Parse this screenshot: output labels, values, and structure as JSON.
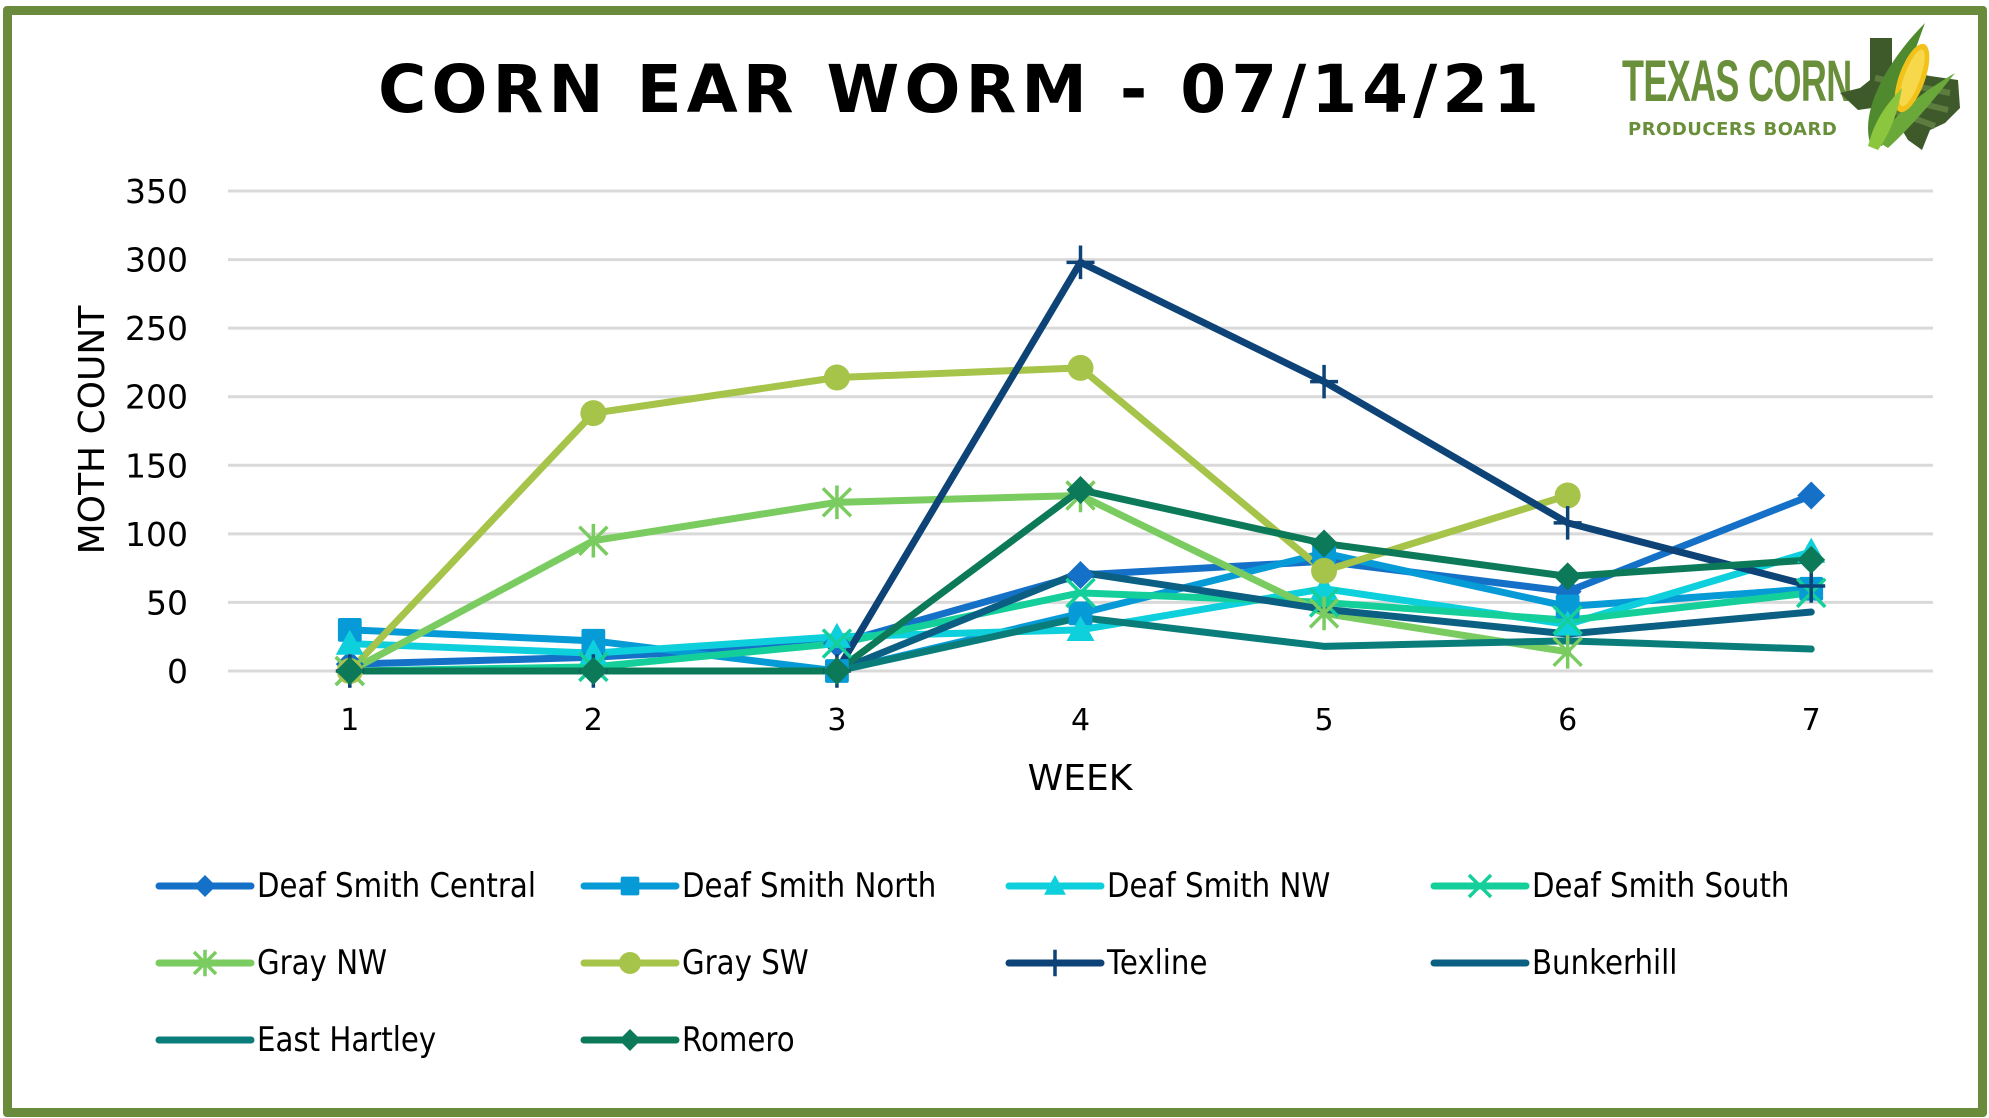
{
  "logo": {
    "main_text": "TEXAS CORN",
    "sub_text": "PRODUCERS BOARD"
  },
  "colors": {
    "frame": "#6a8a3c",
    "grid": "#d9d9d9",
    "logo_green": "#6a8f3a"
  },
  "chart_data": {
    "type": "line",
    "title": "CORN EAR WORM - 07/14/21",
    "xlabel": "WEEK",
    "ylabel": "MOTH COUNT",
    "x": [
      1,
      2,
      3,
      4,
      5,
      6,
      7
    ],
    "x_tick_labels": [
      "1",
      "2",
      "3",
      "4",
      "5",
      "6",
      "7"
    ],
    "ylim": [
      0,
      350
    ],
    "y_ticks": [
      0,
      50,
      100,
      150,
      200,
      250,
      300,
      350
    ],
    "y_tick_labels": [
      "0",
      "50",
      "100",
      "150",
      "200",
      "250",
      "300",
      "350"
    ],
    "grid": true,
    "legend_position": "bottom",
    "series": [
      {
        "name": "Deaf Smith Central",
        "color": "#1570c8",
        "marker": "diamond",
        "values": [
          5,
          10,
          20,
          70,
          80,
          58,
          128
        ]
      },
      {
        "name": "Deaf Smith North",
        "color": "#069ad6",
        "marker": "square",
        "values": [
          30,
          22,
          0,
          42,
          86,
          47,
          60
        ]
      },
      {
        "name": "Deaf Smith NW",
        "color": "#0ecfdc",
        "marker": "triangle",
        "values": [
          20,
          13,
          25,
          30,
          60,
          34,
          87
        ]
      },
      {
        "name": "Deaf Smith South",
        "color": "#14cf9a",
        "marker": "x",
        "values": [
          0,
          3,
          20,
          57,
          50,
          37,
          57
        ]
      },
      {
        "name": "Gray NW",
        "color": "#7acc60",
        "marker": "star",
        "values": [
          0,
          95,
          123,
          128,
          42,
          14,
          null
        ]
      },
      {
        "name": "Gray SW",
        "color": "#a6c34a",
        "marker": "circle",
        "values": [
          0,
          188,
          214,
          221,
          73,
          128,
          null
        ]
      },
      {
        "name": "Texline",
        "color": "#0d4377",
        "marker": "plus",
        "values": [
          0,
          0,
          0,
          298,
          211,
          108,
          62
        ]
      },
      {
        "name": "Bunkerhill",
        "color": "#0a5f82",
        "marker": "none",
        "values": [
          0,
          0,
          0,
          72,
          45,
          27,
          43
        ]
      },
      {
        "name": "East Hartley",
        "color": "#0a7d7b",
        "marker": "none",
        "values": [
          0,
          0,
          0,
          39,
          18,
          22,
          16
        ]
      },
      {
        "name": "Romero",
        "color": "#0c7a58",
        "marker": "diamond",
        "values": [
          0,
          0,
          0,
          132,
          93,
          69,
          81
        ]
      }
    ]
  }
}
